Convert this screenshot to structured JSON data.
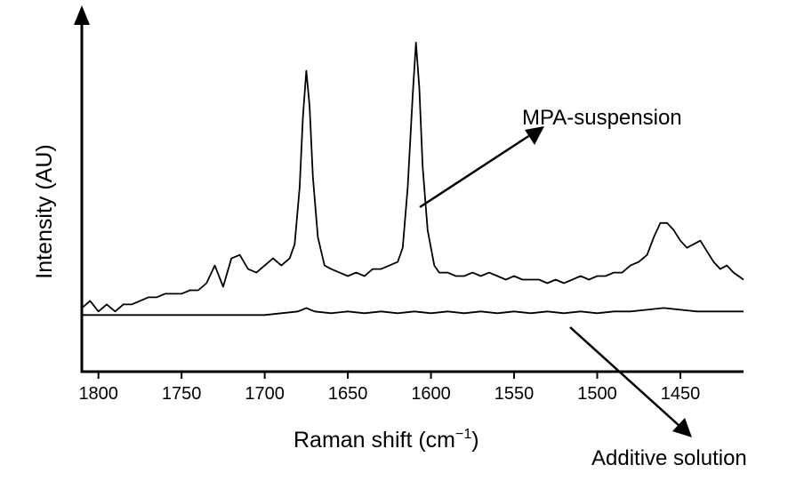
{
  "chart_data": {
    "type": "line",
    "xlabel": "Raman shift (cm",
    "xlabel_sup": "−1",
    "xlabel_close": ")",
    "ylabel": "Intensity (AU)",
    "xlim": [
      1810,
      1412
    ],
    "x_reversed": true,
    "ylim": [
      0,
      100
    ],
    "grid": false,
    "x_ticks": [
      1800,
      1750,
      1700,
      1650,
      1600,
      1550,
      1500,
      1450
    ],
    "x_tick_labels": [
      "1800",
      "1750",
      "1700",
      "1650",
      "1600",
      "1550",
      "1500",
      "1450"
    ],
    "annotations": [
      {
        "text": "MPA-suspension",
        "series": 0
      },
      {
        "text": "Additive solution",
        "series": 1
      }
    ],
    "series": [
      {
        "id": "mpa",
        "color": "#000000",
        "points": [
          [
            1810,
            18
          ],
          [
            1805,
            20
          ],
          [
            1800,
            17
          ],
          [
            1795,
            19
          ],
          [
            1790,
            17
          ],
          [
            1785,
            19
          ],
          [
            1780,
            19
          ],
          [
            1775,
            20
          ],
          [
            1770,
            21
          ],
          [
            1765,
            21
          ],
          [
            1760,
            22
          ],
          [
            1755,
            22
          ],
          [
            1750,
            22
          ],
          [
            1745,
            23
          ],
          [
            1740,
            23
          ],
          [
            1735,
            25
          ],
          [
            1730,
            30
          ],
          [
            1725,
            24
          ],
          [
            1720,
            32
          ],
          [
            1715,
            33
          ],
          [
            1710,
            29
          ],
          [
            1705,
            28
          ],
          [
            1700,
            30
          ],
          [
            1695,
            32
          ],
          [
            1690,
            30
          ],
          [
            1685,
            32
          ],
          [
            1682,
            36
          ],
          [
            1679,
            52
          ],
          [
            1677,
            72
          ],
          [
            1675,
            85
          ],
          [
            1673,
            75
          ],
          [
            1671,
            55
          ],
          [
            1668,
            38
          ],
          [
            1664,
            30
          ],
          [
            1660,
            29
          ],
          [
            1655,
            28
          ],
          [
            1650,
            27
          ],
          [
            1645,
            28
          ],
          [
            1640,
            27
          ],
          [
            1635,
            29
          ],
          [
            1630,
            29
          ],
          [
            1625,
            30
          ],
          [
            1620,
            31
          ],
          [
            1617,
            35
          ],
          [
            1614,
            52
          ],
          [
            1611,
            78
          ],
          [
            1609,
            93
          ],
          [
            1607,
            80
          ],
          [
            1605,
            58
          ],
          [
            1602,
            40
          ],
          [
            1598,
            30
          ],
          [
            1595,
            28
          ],
          [
            1590,
            28
          ],
          [
            1585,
            27
          ],
          [
            1580,
            27
          ],
          [
            1575,
            28
          ],
          [
            1570,
            27
          ],
          [
            1565,
            28
          ],
          [
            1560,
            27
          ],
          [
            1555,
            26
          ],
          [
            1550,
            27
          ],
          [
            1545,
            26
          ],
          [
            1540,
            26
          ],
          [
            1535,
            26
          ],
          [
            1530,
            25
          ],
          [
            1525,
            26
          ],
          [
            1520,
            25
          ],
          [
            1515,
            26
          ],
          [
            1510,
            27
          ],
          [
            1505,
            26
          ],
          [
            1500,
            27
          ],
          [
            1495,
            27
          ],
          [
            1490,
            28
          ],
          [
            1485,
            28
          ],
          [
            1480,
            30
          ],
          [
            1475,
            31
          ],
          [
            1470,
            33
          ],
          [
            1466,
            38
          ],
          [
            1462,
            42
          ],
          [
            1458,
            42
          ],
          [
            1454,
            40
          ],
          [
            1450,
            37
          ],
          [
            1446,
            35
          ],
          [
            1442,
            36
          ],
          [
            1438,
            37
          ],
          [
            1434,
            34
          ],
          [
            1430,
            31
          ],
          [
            1426,
            29
          ],
          [
            1422,
            30
          ],
          [
            1418,
            28
          ],
          [
            1412,
            26
          ]
        ]
      },
      {
        "id": "additive",
        "color": "#000000",
        "points": [
          [
            1810,
            16
          ],
          [
            1800,
            16
          ],
          [
            1790,
            16
          ],
          [
            1780,
            16
          ],
          [
            1770,
            16
          ],
          [
            1760,
            16
          ],
          [
            1750,
            16
          ],
          [
            1740,
            16
          ],
          [
            1730,
            16
          ],
          [
            1720,
            16
          ],
          [
            1710,
            16
          ],
          [
            1700,
            16
          ],
          [
            1690,
            16.5
          ],
          [
            1680,
            17
          ],
          [
            1675,
            18
          ],
          [
            1670,
            17
          ],
          [
            1660,
            16.5
          ],
          [
            1650,
            17
          ],
          [
            1640,
            16.5
          ],
          [
            1630,
            17
          ],
          [
            1620,
            16.5
          ],
          [
            1610,
            17
          ],
          [
            1600,
            16.5
          ],
          [
            1590,
            17
          ],
          [
            1580,
            16.5
          ],
          [
            1570,
            17
          ],
          [
            1560,
            16.5
          ],
          [
            1550,
            17
          ],
          [
            1540,
            16.5
          ],
          [
            1530,
            17
          ],
          [
            1520,
            16.5
          ],
          [
            1510,
            17
          ],
          [
            1500,
            16.5
          ],
          [
            1490,
            17
          ],
          [
            1480,
            17
          ],
          [
            1470,
            17.5
          ],
          [
            1460,
            18
          ],
          [
            1450,
            17.5
          ],
          [
            1440,
            17
          ],
          [
            1430,
            17
          ],
          [
            1420,
            17
          ],
          [
            1412,
            17
          ]
        ]
      }
    ]
  }
}
